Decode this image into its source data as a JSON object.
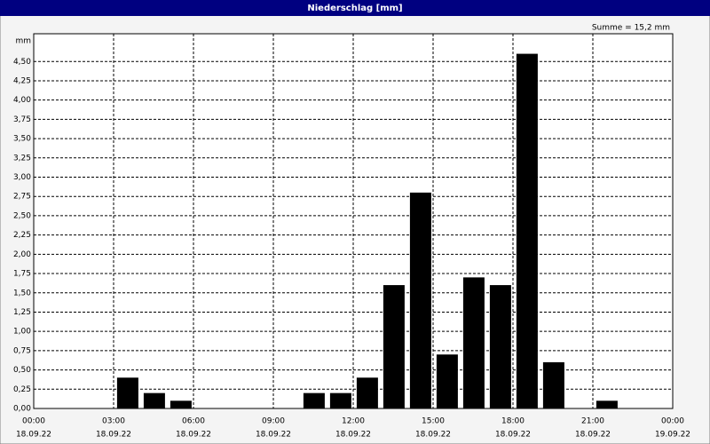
{
  "chart_data": {
    "type": "bar",
    "title": "Niederschlag [mm]",
    "annotation": "Summe = 15,2 mm",
    "y_unit_label": "mm",
    "color": "#000000",
    "grid": true,
    "x": [
      0,
      1,
      2,
      3,
      4,
      5,
      6,
      7,
      8,
      9,
      10,
      11,
      12,
      13,
      14,
      15,
      16,
      17,
      18,
      19,
      20,
      21,
      22,
      23
    ],
    "values": [
      0,
      0,
      0,
      0.4,
      0.2,
      0.1,
      0,
      0,
      0,
      0,
      0.2,
      0.2,
      0.4,
      1.6,
      2.8,
      0.7,
      1.7,
      1.6,
      4.6,
      0.6,
      0,
      0.1,
      0,
      0
    ],
    "xlim": [
      0,
      24
    ],
    "xticks": [
      {
        "value": 0,
        "label": "00:00"
      },
      {
        "value": 3,
        "label": "03:00"
      },
      {
        "value": 6,
        "label": "06:00"
      },
      {
        "value": 9,
        "label": "09:00"
      },
      {
        "value": 12,
        "label": "12:00"
      },
      {
        "value": 15,
        "label": "15:00"
      },
      {
        "value": 18,
        "label": "18:00"
      },
      {
        "value": 21,
        "label": "21:00"
      },
      {
        "value": 24,
        "label": "00:00"
      }
    ],
    "xtick_dates": [
      "18.09.22",
      "18.09.22",
      "18.09.22",
      "18.09.22",
      "18.09.22",
      "18.09.22",
      "18.09.22",
      "18.09.22",
      "19.09.22"
    ],
    "ylim": [
      0,
      4.86
    ],
    "yticks": [
      {
        "value": 0,
        "label": "0,00"
      },
      {
        "value": 0.25,
        "label": "0,25"
      },
      {
        "value": 0.5,
        "label": "0,50"
      },
      {
        "value": 0.75,
        "label": "0,75"
      },
      {
        "value": 1,
        "label": "1,00"
      },
      {
        "value": 1.25,
        "label": "1,25"
      },
      {
        "value": 1.5,
        "label": "1,50"
      },
      {
        "value": 1.75,
        "label": "1,75"
      },
      {
        "value": 2,
        "label": "2,00"
      },
      {
        "value": 2.25,
        "label": "2,25"
      },
      {
        "value": 2.5,
        "label": "2,50"
      },
      {
        "value": 2.75,
        "label": "2,75"
      },
      {
        "value": 3,
        "label": "3,00"
      },
      {
        "value": 3.25,
        "label": "3,25"
      },
      {
        "value": 3.5,
        "label": "3,50"
      },
      {
        "value": 3.75,
        "label": "3,75"
      },
      {
        "value": 4,
        "label": "4,00"
      },
      {
        "value": 4.25,
        "label": "4,25"
      },
      {
        "value": 4.5,
        "label": "4,50"
      }
    ]
  }
}
